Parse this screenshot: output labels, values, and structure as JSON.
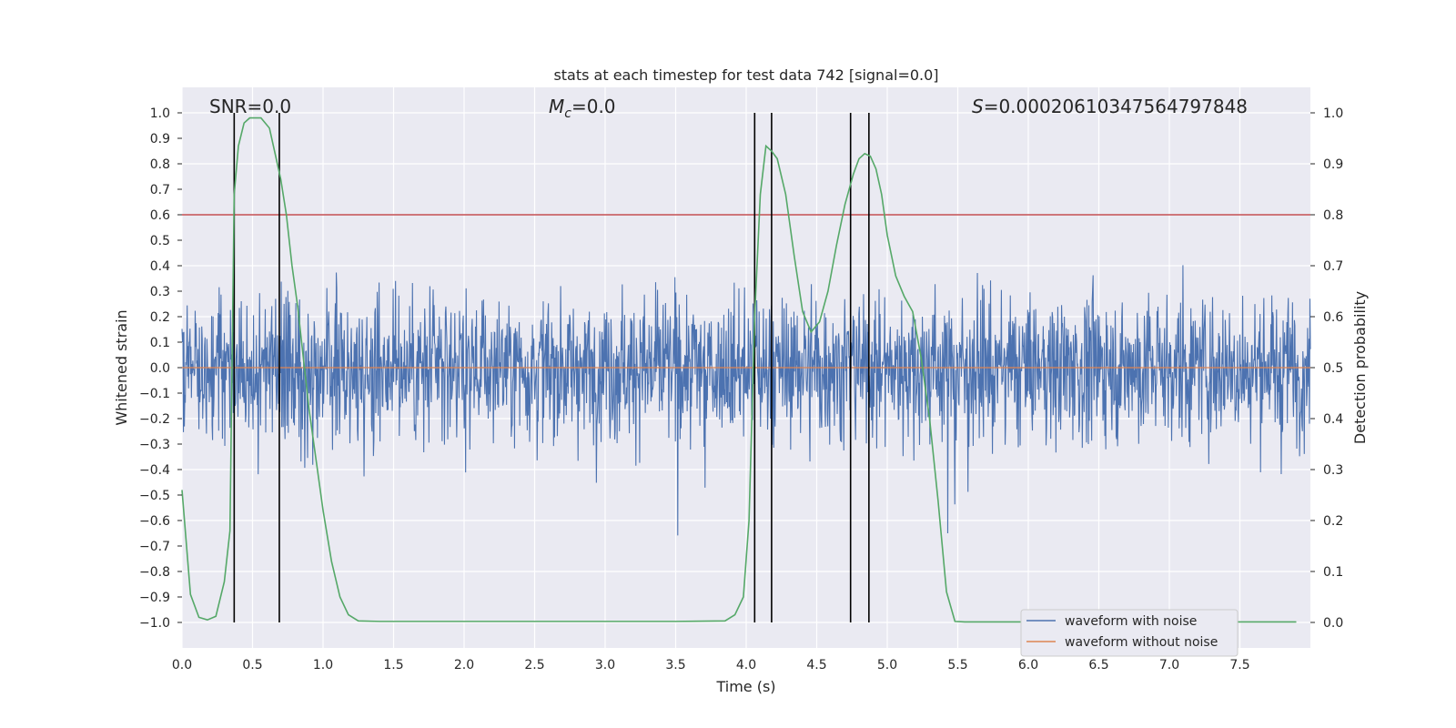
{
  "chart_data": {
    "type": "line",
    "title": "stats at each timestep for test data 742 [signal=0.0]",
    "xlabel": "Time (s)",
    "ylabel_left": "Whitened strain",
    "ylabel_right": "Detection probability",
    "xlim": [
      0.0,
      8.0
    ],
    "ylim_left": [
      -1.1,
      1.1
    ],
    "ylim_right": [
      -0.05,
      1.05
    ],
    "xticks": [
      "0.0",
      "0.5",
      "1.0",
      "1.5",
      "2.0",
      "2.5",
      "3.0",
      "3.5",
      "4.0",
      "4.5",
      "5.0",
      "5.5",
      "6.0",
      "6.5",
      "7.0",
      "7.5"
    ],
    "yticks_left": [
      "1.0",
      "0.9",
      "0.8",
      "0.7",
      "0.6",
      "0.5",
      "0.4",
      "0.3",
      "0.2",
      "0.1",
      "0.0",
      "-0.1",
      "-0.2",
      "-0.3",
      "-0.4",
      "-0.5",
      "-0.6",
      "-0.7",
      "-0.8",
      "-0.9",
      "-1.0"
    ],
    "yticks_right": [
      "1.0",
      "0.9",
      "0.8",
      "0.7",
      "0.6",
      "0.5",
      "0.4",
      "0.3",
      "0.2",
      "0.1",
      "0.0"
    ],
    "annotations": {
      "snr": "SNR=0.0",
      "mc_symbol": "M",
      "mc_sub": "c",
      "mc_value": "=0.0",
      "s_symbol": "S",
      "s_value": "=0.00020610347564797848"
    },
    "threshold": 0.8,
    "vertical_lines": [
      0.37,
      0.69,
      4.06,
      4.18,
      4.74,
      4.87
    ],
    "series": [
      {
        "name": "waveform with noise",
        "color": "#4c72b0",
        "envelope": 0.5
      },
      {
        "name": "waveform without noise",
        "color": "#dd8452",
        "values_note": "flat at 0"
      },
      {
        "color": "#55a868",
        "x": [
          0.0,
          0.06,
          0.12,
          0.18,
          0.24,
          0.3,
          0.34,
          0.37,
          0.4,
          0.44,
          0.48,
          0.52,
          0.56,
          0.62,
          0.66,
          0.7,
          0.74,
          0.78,
          0.82,
          0.86,
          0.9,
          0.95,
          1.0,
          1.06,
          1.12,
          1.18,
          1.25,
          1.4,
          2.0,
          3.0,
          3.5,
          3.85,
          3.92,
          3.98,
          4.02,
          4.06,
          4.1,
          4.14,
          4.18,
          4.22,
          4.28,
          4.34,
          4.4,
          4.46,
          4.52,
          4.58,
          4.64,
          4.7,
          4.76,
          4.8,
          4.84,
          4.88,
          4.92,
          4.96,
          5.0,
          5.06,
          5.12,
          5.18,
          5.24,
          5.3,
          5.36,
          5.42,
          5.48,
          5.55,
          6.0,
          7.0,
          7.9
        ],
        "y": [
          0.26,
          0.055,
          0.01,
          0.005,
          0.012,
          0.08,
          0.18,
          0.84,
          0.935,
          0.98,
          0.99,
          0.99,
          0.99,
          0.97,
          0.92,
          0.87,
          0.8,
          0.7,
          0.62,
          0.52,
          0.42,
          0.32,
          0.22,
          0.12,
          0.05,
          0.015,
          0.003,
          0.002,
          0.002,
          0.002,
          0.002,
          0.003,
          0.015,
          0.05,
          0.2,
          0.6,
          0.84,
          0.935,
          0.925,
          0.91,
          0.84,
          0.72,
          0.61,
          0.57,
          0.59,
          0.65,
          0.74,
          0.82,
          0.88,
          0.91,
          0.92,
          0.915,
          0.89,
          0.84,
          0.76,
          0.68,
          0.64,
          0.61,
          0.52,
          0.4,
          0.24,
          0.06,
          0.002,
          0.001,
          0.001,
          0.001,
          0.001
        ]
      }
    ]
  },
  "legend": {
    "items": [
      {
        "label": "waveform with noise",
        "color": "#4c72b0"
      },
      {
        "label": "waveform without noise",
        "color": "#dd8452"
      }
    ]
  },
  "colors": {
    "plot_bg": "#eaeaf2",
    "grid": "#ffffff",
    "noise": "#4c72b0",
    "clean": "#dd8452",
    "prob": "#55a868",
    "threshold": "#c44e52",
    "vlines": "#000000"
  }
}
